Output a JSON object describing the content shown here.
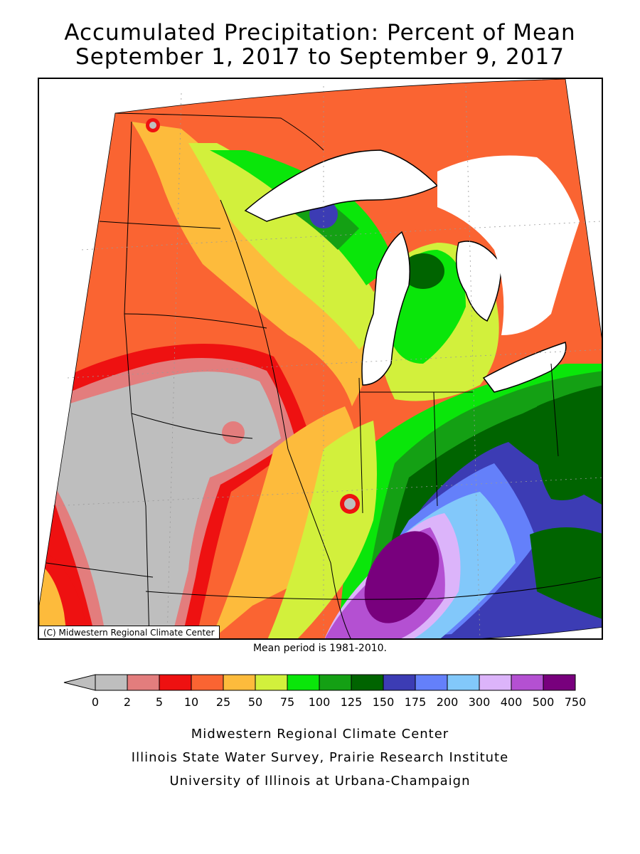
{
  "title_line1": "Accumulated Precipitation: Percent of Mean",
  "title_line2": "September 1, 2017 to September 9, 2017",
  "copyright": "(C) Midwestern Regional Climate Center",
  "mean_note": "Mean period is 1981-2010.",
  "legend": {
    "tick_labels": [
      "0",
      "2",
      "5",
      "10",
      "25",
      "50",
      "75",
      "100",
      "125",
      "150",
      "175",
      "200",
      "300",
      "400",
      "500",
      "750"
    ],
    "bins": [
      {
        "range": "0-2",
        "color": "#bebebe"
      },
      {
        "range": "2-5",
        "color": "#e37d7d"
      },
      {
        "range": "5-10",
        "color": "#ee1111"
      },
      {
        "range": "10-25",
        "color": "#fa6432"
      },
      {
        "range": "25-50",
        "color": "#fdbb3c"
      },
      {
        "range": "50-75",
        "color": "#d2f03c"
      },
      {
        "range": "75-100",
        "color": "#0ae60a"
      },
      {
        "range": "100-125",
        "color": "#14a014"
      },
      {
        "range": "125-150",
        "color": "#006400"
      },
      {
        "range": "150-175",
        "color": "#3c3cb4"
      },
      {
        "range": "175-200",
        "color": "#6480fa"
      },
      {
        "range": "200-300",
        "color": "#82c8fa"
      },
      {
        "range": "300-400",
        "color": "#dcb4fa"
      },
      {
        "range": "400-500",
        "color": "#b450d2"
      },
      {
        "range": "500-750",
        "color": "#78007d"
      }
    ],
    "below_range_color": "#bebebe"
  },
  "credits": [
    "Midwestern Regional Climate Center",
    "Illinois State Water Survey, Prairie Research Institute",
    "University of Illinois at Urbana-Champaign"
  ]
}
